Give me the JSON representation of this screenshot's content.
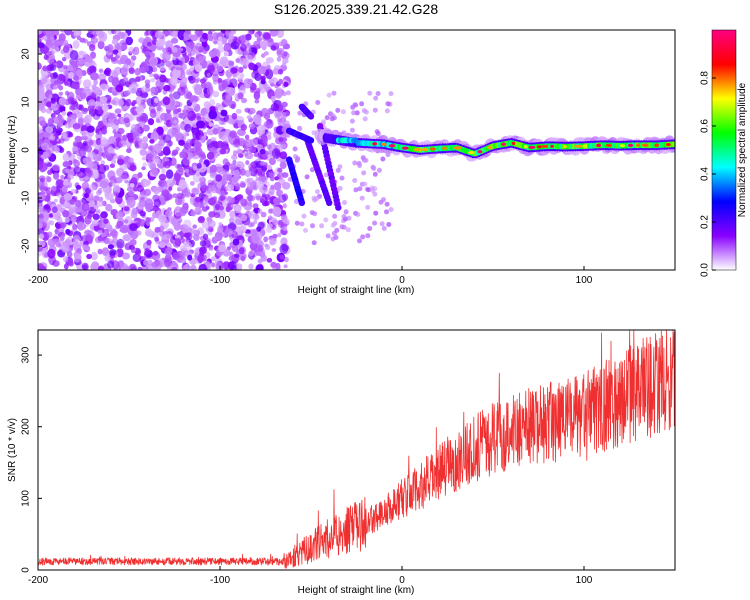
{
  "title": "S126.2025.339.21.42.G28",
  "chart_data": [
    {
      "type": "heatmap",
      "xlabel": "Height of straight line (km)",
      "ylabel": "Frequency (Hz)",
      "xlim": [
        -200,
        150
      ],
      "ylim": [
        -25,
        25
      ],
      "xticks": [
        "-200",
        "-100",
        "0",
        "100"
      ],
      "yticks": [
        "-20",
        "-10",
        "0",
        "10",
        "20"
      ],
      "xtick_values": [
        -200,
        -100,
        0,
        100
      ],
      "ytick_values": [
        -20,
        -10,
        0,
        10,
        20
      ],
      "colorbar": {
        "label": "Normalized spectral amplitude",
        "range": [
          0,
          1
        ],
        "ticks": [
          "0.0",
          "0.2",
          "0.4",
          "0.6",
          "0.8"
        ],
        "tick_values": [
          0.0,
          0.2,
          0.4,
          0.6,
          0.8
        ],
        "colors": [
          "#ffffff",
          "#8800ff",
          "#0000ff",
          "#00ffff",
          "#00ff00",
          "#ffff00",
          "#ff0000",
          "#ff0080"
        ]
      },
      "noise_region_x": [
        -200,
        -65
      ],
      "signal_trace": {
        "x": [
          -25,
          -10,
          0,
          10,
          20,
          30,
          40,
          50,
          60,
          70,
          80,
          90,
          100,
          110,
          120,
          130,
          140,
          150
        ],
        "freq": [
          1.5,
          1.2,
          0.5,
          0.0,
          0.3,
          0.5,
          -0.8,
          0.8,
          1.5,
          0.5,
          0.8,
          0.7,
          0.8,
          1.0,
          0.9,
          1.0,
          1.0,
          1.2
        ]
      }
    },
    {
      "type": "line",
      "xlabel": "Height of straight line (km)",
      "ylabel": "SNR (10 * v/v)",
      "xlim": [
        -200,
        150
      ],
      "ylim": [
        0,
        335
      ],
      "xticks": [
        "-200",
        "-100",
        "0",
        "100"
      ],
      "yticks": [
        "0",
        "100",
        "200",
        "300"
      ],
      "xtick_values": [
        -200,
        -100,
        0,
        100
      ],
      "ytick_values": [
        0,
        100,
        200,
        300
      ],
      "color": "#f03030",
      "series": [
        {
          "name": "SNR",
          "x": [
            -200,
            -150,
            -100,
            -65,
            -55,
            -40,
            -25,
            -10,
            0,
            10,
            25,
            40,
            60,
            80,
            100,
            120,
            135,
            150
          ],
          "y": [
            12,
            12,
            12,
            12,
            25,
            45,
            60,
            80,
            100,
            115,
            145,
            170,
            195,
            205,
            215,
            240,
            255,
            270
          ]
        }
      ]
    }
  ]
}
